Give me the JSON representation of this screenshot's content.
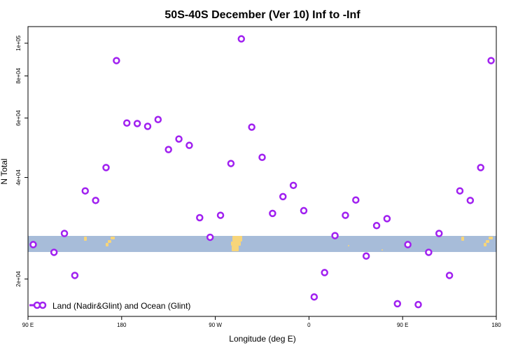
{
  "chart_data": {
    "type": "scatter",
    "title": "50S-40S December (Ver 10)   Inf to -Inf",
    "xlabel": "Longitude (deg E)",
    "ylabel": "N Total",
    "x_scale": "linear",
    "y_scale": "log",
    "xlim": [
      90,
      540
    ],
    "ylim": [
      15500,
      112000
    ],
    "x_ticks": [
      {
        "value": 90,
        "label": "90 E"
      },
      {
        "value": 180,
        "label": "180"
      },
      {
        "value": 270,
        "label": "90 W"
      },
      {
        "value": 360,
        "label": "0"
      },
      {
        "value": 450,
        "label": "90 E"
      },
      {
        "value": 540,
        "label": "180"
      }
    ],
    "y_ticks": [
      {
        "value": 20000,
        "label": "2e+04"
      },
      {
        "value": 40000,
        "label": "4e+04"
      },
      {
        "value": 60000,
        "label": "6e+04"
      },
      {
        "value": 80000,
        "label": "8e+04"
      },
      {
        "value": 100000,
        "label": "1e+05"
      }
    ],
    "grid": false,
    "legend_position": "bottom-left",
    "background_band": {
      "description_colors": {
        "ocean": "#a7bcd9",
        "land": "#f7d57a"
      }
    },
    "series": [
      {
        "name": "Land (Nadir&Glint) and Ocean (Glint)",
        "color": "#a020f0",
        "marker": "open-circle",
        "x": [
          95,
          115,
          125,
          135,
          145,
          155,
          165,
          175,
          185,
          195,
          205,
          215,
          225,
          235,
          245,
          255,
          265,
          275,
          285,
          295,
          305,
          315,
          325,
          335,
          345,
          355,
          365,
          375,
          385,
          395,
          405,
          415,
          425,
          435,
          445,
          455,
          465,
          475,
          485,
          495,
          505,
          515,
          525,
          535
        ],
        "y": [
          25300,
          24000,
          27300,
          20500,
          36500,
          34200,
          42800,
          88800,
          58000,
          57800,
          56700,
          59400,
          48400,
          52000,
          49800,
          30400,
          26600,
          30900,
          44000,
          103000,
          56400,
          45900,
          31300,
          35100,
          37900,
          31900,
          17700,
          20900,
          26900,
          30900,
          34300,
          23400,
          28800,
          30200,
          16900,
          25300,
          16800,
          24000,
          27300,
          20500,
          36500,
          34200,
          42800,
          88800
        ]
      }
    ]
  }
}
